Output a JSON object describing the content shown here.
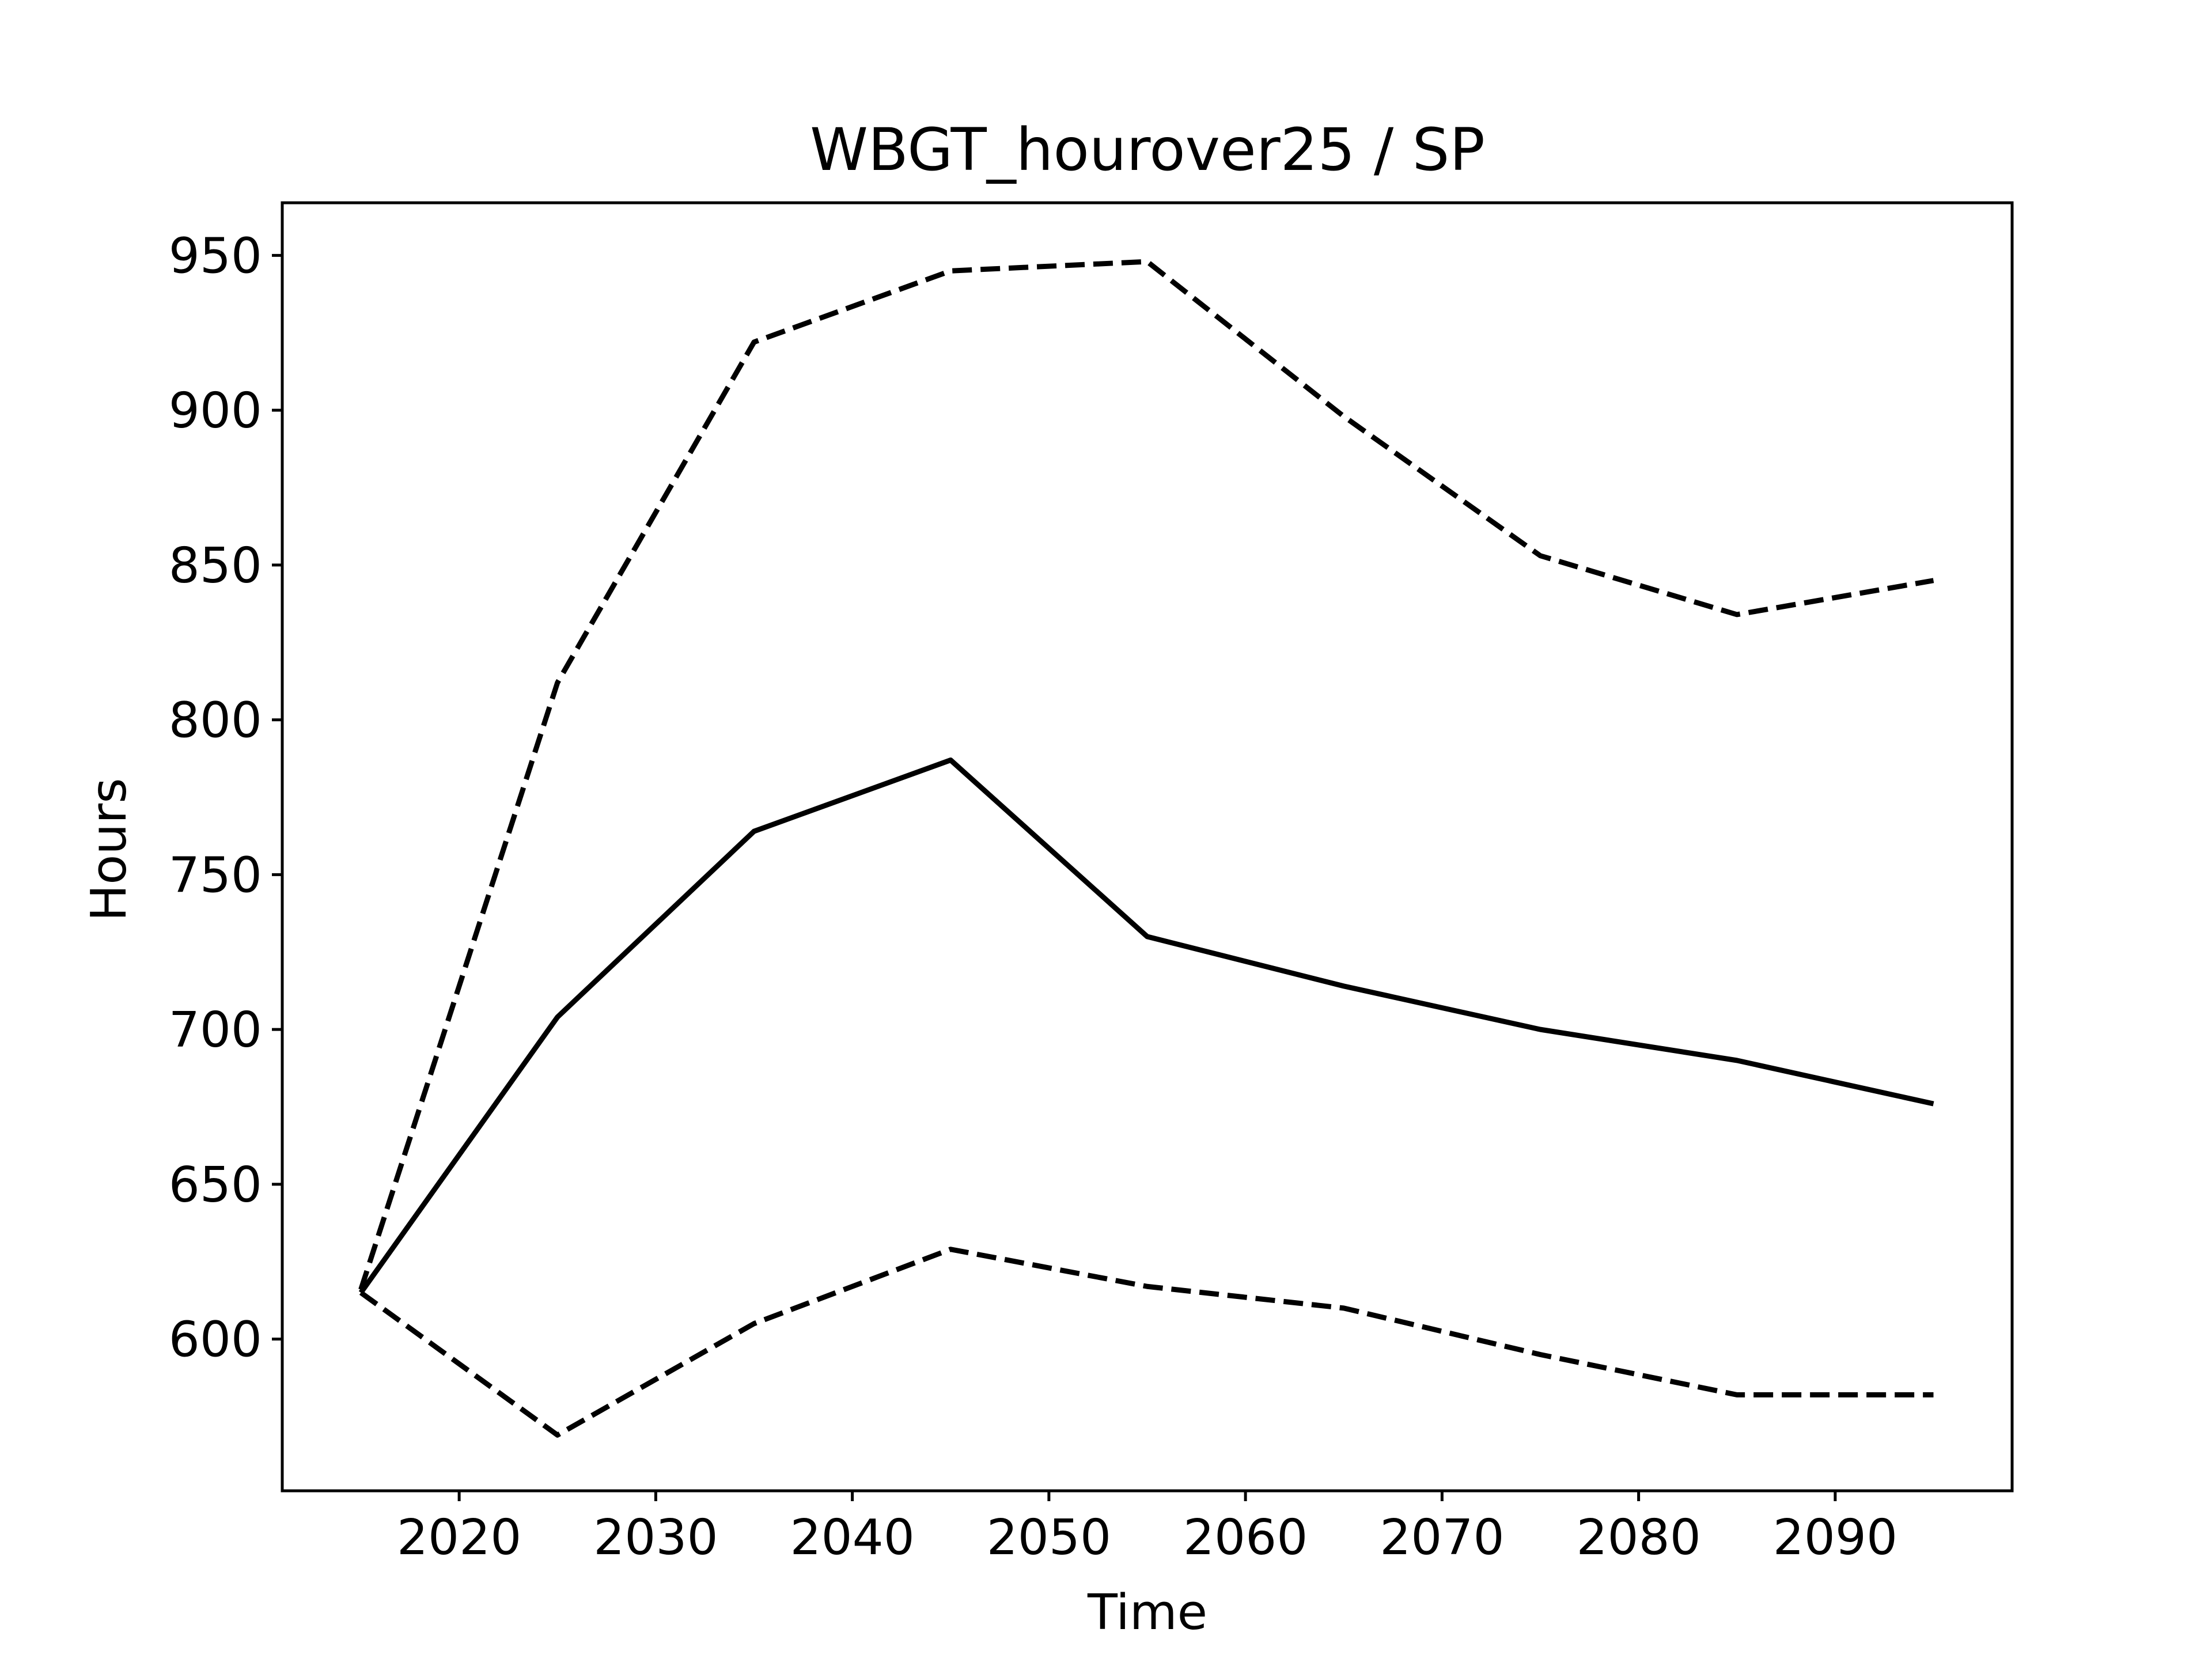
{
  "chart_data": {
    "type": "line",
    "title": "WBGT_hourover25 / SP",
    "xlabel": "Time",
    "ylabel": "Hours",
    "xlim": [
      2011,
      2099
    ],
    "ylim": [
      551,
      967
    ],
    "xticks": [
      2020,
      2030,
      2040,
      2050,
      2060,
      2070,
      2080,
      2090
    ],
    "yticks": [
      600,
      650,
      700,
      750,
      800,
      850,
      900,
      950
    ],
    "grid": false,
    "legend": "none",
    "x": [
      2015,
      2025,
      2035,
      2045,
      2055,
      2065,
      2075,
      2085,
      2095
    ],
    "series": [
      {
        "style": "solid",
        "color": "#000000",
        "values": [
          615,
          704,
          764,
          787,
          730,
          714,
          700,
          690,
          676
        ]
      },
      {
        "style": "dashed",
        "color": "#000000",
        "values": [
          616,
          812,
          922,
          945,
          948,
          898,
          853,
          834,
          845
        ]
      },
      {
        "style": "dashed",
        "color": "#000000",
        "values": [
          615,
          569,
          605,
          629,
          617,
          610,
          595,
          582,
          582
        ]
      }
    ]
  }
}
